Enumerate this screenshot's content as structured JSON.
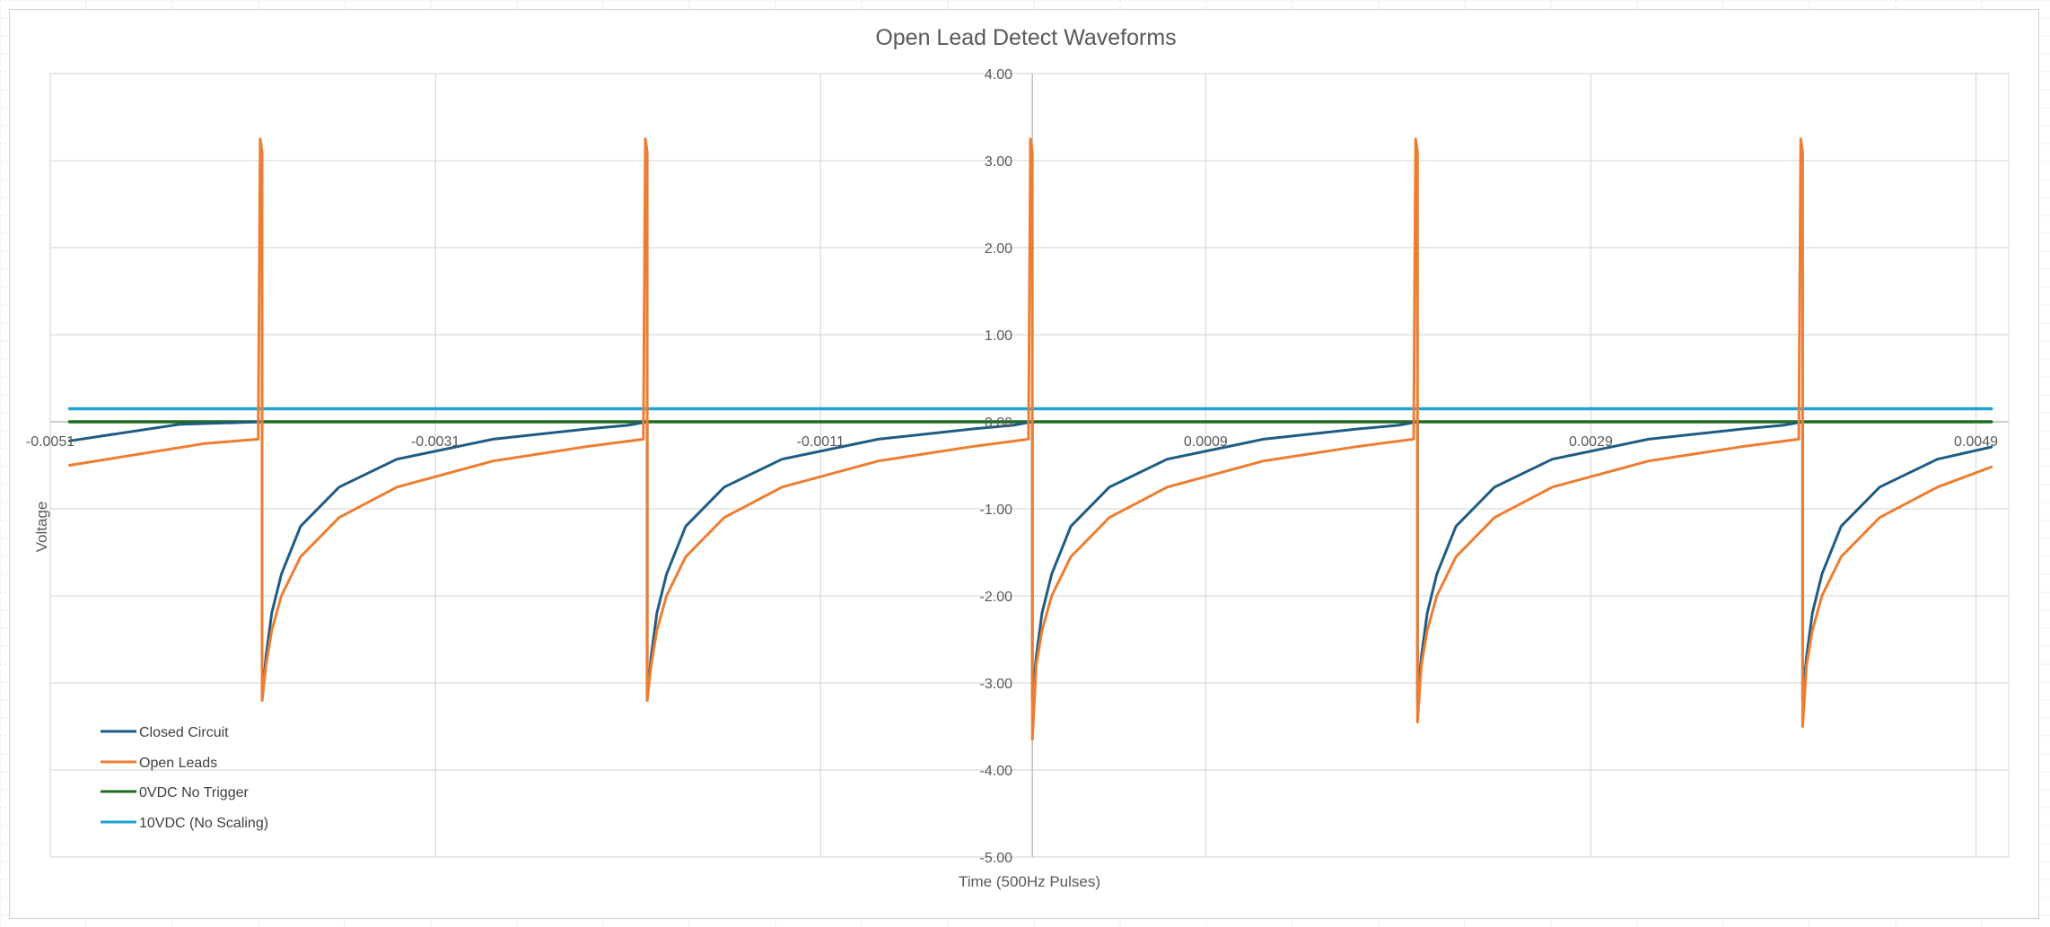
{
  "chart_data": {
    "type": "line",
    "title": "Open Lead Detect Waveforms",
    "xlabel": "Time (500Hz Pulses)",
    "ylabel": "Voltage",
    "xlim": [
      -0.0051,
      0.00507
    ],
    "ylim": [
      -5.0,
      4.0
    ],
    "x_ticks": [
      "-0.0051",
      "-0.0031",
      "-0.0011",
      "0.0009",
      "0.0029",
      "0.0049"
    ],
    "y_ticks": [
      "4.00",
      "3.00",
      "2.00",
      "1.00",
      "0.00",
      "-1.00",
      "-2.00",
      "-3.00",
      "-4.00",
      "-5.00"
    ],
    "grid": true,
    "legend_position": "bottom-left",
    "pulse_times": [
      -0.004,
      -0.002,
      0.0,
      0.002,
      0.004
    ],
    "series": [
      {
        "name": "Closed Circuit",
        "color": "#1f5c84",
        "x": [
          -0.005,
          -0.00443,
          -0.004,
          -0.004,
          -0.00398,
          -0.00395,
          -0.0039,
          -0.0038,
          -0.0036,
          -0.0033,
          -0.0028,
          -0.0023,
          -0.0021,
          -0.002,
          -0.002,
          -0.00198,
          -0.00195,
          -0.0019,
          -0.0018,
          -0.0016,
          -0.0013,
          -0.0008,
          -0.0003,
          -0.0001,
          0.0,
          0.0,
          2e-05,
          5e-05,
          0.0001,
          0.0002,
          0.0004,
          0.0007,
          0.0012,
          0.0017,
          0.0019,
          0.002,
          0.002,
          0.00202,
          0.00205,
          0.0021,
          0.0022,
          0.0024,
          0.0027,
          0.0032,
          0.0037,
          0.0039,
          0.004,
          0.004,
          0.00402,
          0.00405,
          0.0041,
          0.0042,
          0.0044,
          0.0047,
          0.00498
        ],
        "y": [
          -0.22,
          -0.03,
          0.0,
          -3.2,
          -2.7,
          -2.2,
          -1.75,
          -1.2,
          -0.75,
          -0.43,
          -0.2,
          -0.08,
          -0.04,
          0.0,
          -3.2,
          -2.7,
          -2.2,
          -1.75,
          -1.2,
          -0.75,
          -0.43,
          -0.2,
          -0.08,
          -0.04,
          0.0,
          -3.2,
          -2.7,
          -2.2,
          -1.75,
          -1.2,
          -0.75,
          -0.43,
          -0.2,
          -0.08,
          -0.04,
          0.0,
          -3.2,
          -2.7,
          -2.2,
          -1.75,
          -1.2,
          -0.75,
          -0.43,
          -0.2,
          -0.08,
          -0.04,
          0.0,
          -3.2,
          -2.7,
          -2.2,
          -1.75,
          -1.2,
          -0.75,
          -0.43,
          -0.29
        ]
      },
      {
        "name": "Open Leads",
        "color": "#ed7d31",
        "x": [
          -0.005,
          -0.0043,
          -0.00402,
          -0.00401,
          -0.004,
          -0.004,
          -0.00398,
          -0.00395,
          -0.0039,
          -0.0038,
          -0.0036,
          -0.0033,
          -0.0028,
          -0.0023,
          -0.00202,
          -0.00201,
          -0.002,
          -0.002,
          -0.00198,
          -0.00195,
          -0.0019,
          -0.0018,
          -0.0016,
          -0.0013,
          -0.0008,
          -0.0003,
          -2e-05,
          -1e-05,
          0.0,
          0.0,
          2e-05,
          5e-05,
          0.0001,
          0.0002,
          0.0004,
          0.0007,
          0.0012,
          0.0017,
          0.00198,
          0.00199,
          0.002,
          0.002,
          0.00202,
          0.00205,
          0.0021,
          0.0022,
          0.0024,
          0.0027,
          0.0032,
          0.0037,
          0.00398,
          0.00399,
          0.004,
          0.004,
          0.00402,
          0.00405,
          0.0041,
          0.0042,
          0.0044,
          0.0047,
          0.00498
        ],
        "y": [
          -0.5,
          -0.25,
          -0.2,
          3.25,
          3.1,
          -3.2,
          -2.8,
          -2.4,
          -2.0,
          -1.55,
          -1.1,
          -0.75,
          -0.45,
          -0.28,
          -0.2,
          3.25,
          3.1,
          -3.2,
          -2.8,
          -2.4,
          -2.0,
          -1.55,
          -1.1,
          -0.75,
          -0.45,
          -0.28,
          -0.2,
          3.25,
          3.1,
          -3.65,
          -2.8,
          -2.4,
          -2.0,
          -1.55,
          -1.1,
          -0.75,
          -0.45,
          -0.28,
          -0.2,
          3.25,
          3.1,
          -3.45,
          -2.8,
          -2.4,
          -2.0,
          -1.55,
          -1.1,
          -0.75,
          -0.45,
          -0.28,
          -0.2,
          3.25,
          3.1,
          -3.5,
          -2.8,
          -2.4,
          -2.0,
          -1.55,
          -1.1,
          -0.75,
          -0.52
        ]
      },
      {
        "name": "0VDC No Trigger",
        "color": "#1e6b1e",
        "x": [
          -0.005,
          0.00498
        ],
        "y": [
          0.0,
          0.0
        ]
      },
      {
        "name": "10VDC (No Scaling)",
        "color": "#1ea1d4",
        "x": [
          -0.005,
          0.00498
        ],
        "y": [
          0.15,
          0.15
        ]
      }
    ]
  }
}
